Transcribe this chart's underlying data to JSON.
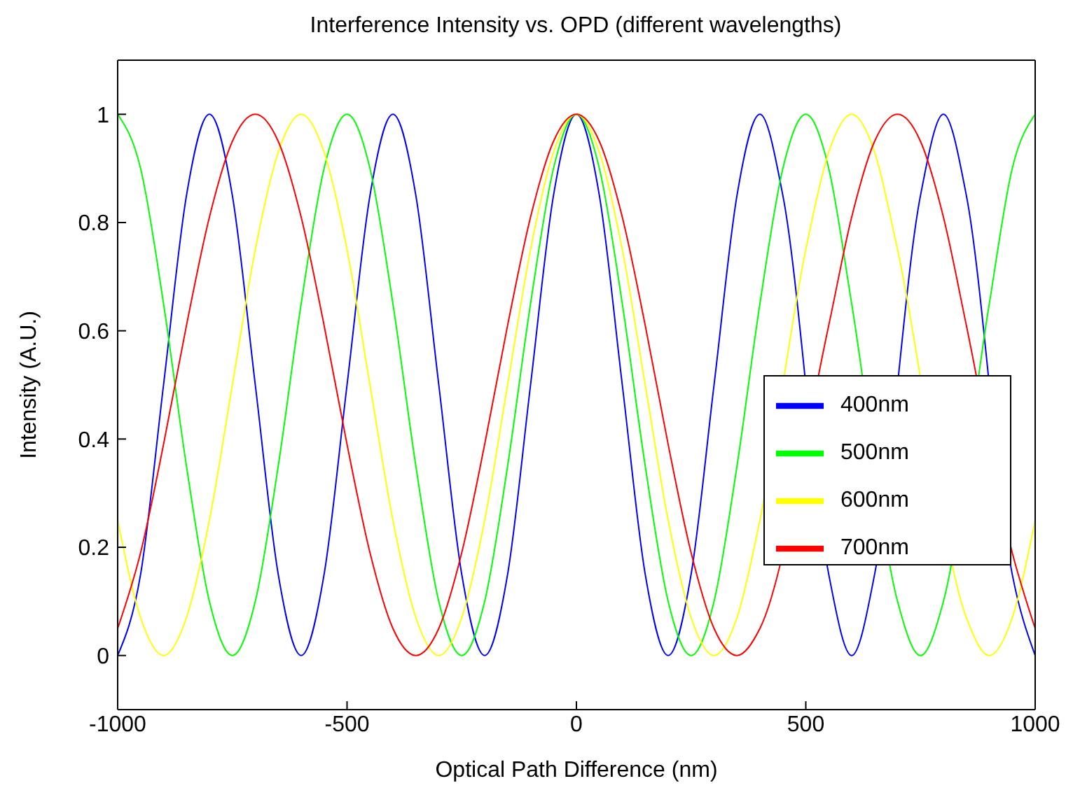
{
  "chart_data": {
    "type": "line",
    "title": "Interference Intensity vs. OPD (different wavelengths)",
    "xlabel": "Optical Path Difference (nm)",
    "ylabel": "Intensity (A.U.)",
    "x": [
      -1000,
      -950,
      -900,
      -850,
      -800,
      -750,
      -700,
      -650,
      -600,
      -550,
      -500,
      -450,
      -400,
      -350,
      -300,
      -250,
      -200,
      -150,
      -100,
      -50,
      0,
      50,
      100,
      150,
      200,
      250,
      300,
      350,
      400,
      450,
      500,
      550,
      600,
      650,
      700,
      750,
      800,
      850,
      900,
      950,
      1000
    ],
    "series": [
      {
        "name": "400nm",
        "color": "#0000ff",
        "values": [
          0,
          0.15,
          0.5,
          0.85,
          1,
          0.85,
          0.5,
          0.15,
          0,
          0.15,
          0.5,
          0.85,
          1,
          0.85,
          0.5,
          0.15,
          0,
          0.15,
          0.5,
          0.85,
          1,
          0.85,
          0.5,
          0.15,
          0,
          0.15,
          0.5,
          0.85,
          1,
          0.85,
          null,
          0.15,
          0,
          0.15,
          null,
          0.85,
          1,
          0.85,
          null,
          0.15,
          0
        ]
      },
      {
        "name": "500nm",
        "color": "#00ff00",
        "values": [
          1,
          0.9,
          0.65,
          0.35,
          0.1,
          0,
          0.1,
          0.35,
          0.65,
          0.9,
          1,
          0.9,
          0.65,
          0.35,
          0.1,
          0,
          0.1,
          0.35,
          0.65,
          0.9,
          1,
          0.9,
          0.65,
          0.35,
          0.1,
          0,
          0.1,
          0.35,
          0.65,
          0.9,
          1,
          0.9,
          0.65,
          null,
          0.1,
          0,
          0.1,
          null,
          0.65,
          0.9,
          1
        ]
      },
      {
        "name": "600nm",
        "color": "#ffff00",
        "values": [
          0.25,
          0.07,
          0,
          0.07,
          0.25,
          0.5,
          0.75,
          0.93,
          1,
          0.93,
          0.75,
          0.5,
          0.25,
          0.07,
          0,
          0.07,
          0.25,
          0.5,
          0.75,
          0.93,
          1,
          0.93,
          0.75,
          0.5,
          0.25,
          0.07,
          0,
          0.07,
          0.25,
          null,
          0.75,
          0.93,
          1,
          0.93,
          0.75,
          null,
          null,
          0.07,
          0,
          0.07,
          0.25
        ]
      },
      {
        "name": "700nm",
        "color": "#ff0000",
        "values": [
          0.05,
          0.19,
          0.39,
          0.61,
          0.81,
          0.95,
          1,
          0.95,
          0.81,
          0.61,
          0.39,
          0.19,
          0.05,
          0,
          0.05,
          0.19,
          0.39,
          0.61,
          0.81,
          0.95,
          1,
          0.95,
          0.81,
          0.61,
          0.39,
          0.19,
          0.05,
          0,
          0.05,
          null,
          null,
          0.61,
          0.81,
          0.95,
          1,
          0.95,
          0.81,
          0.61,
          null,
          0.19,
          0.05
        ]
      }
    ],
    "xlim": [
      -1000,
      1000
    ],
    "xticks": [
      -1000,
      -500,
      0,
      500,
      1000
    ],
    "ylim": [
      -0.1,
      1.1
    ],
    "yticks": [
      0,
      0.2,
      0.4,
      0.6,
      0.8,
      1
    ],
    "grid": false,
    "legend": "right",
    "marker": "none",
    "line_style": "solid"
  }
}
